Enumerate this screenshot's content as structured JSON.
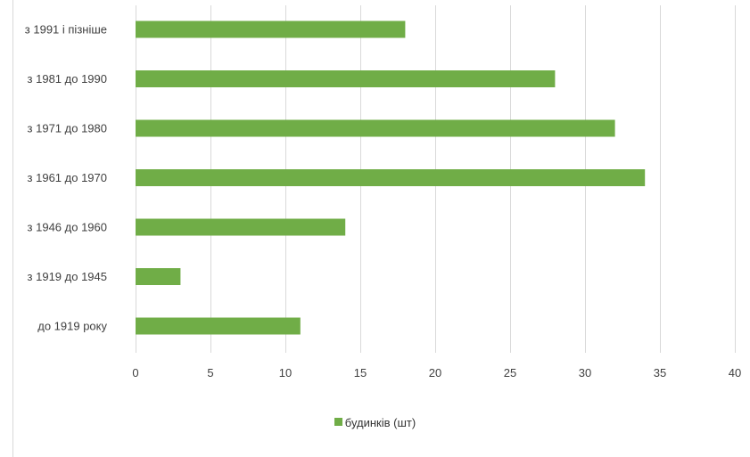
{
  "chart_data": {
    "type": "bar",
    "orientation": "horizontal",
    "categories": [
      "з 1991 і пізніше",
      "з 1981 до 1990",
      "з 1971 до 1980",
      "з 1961 до 1970",
      "з 1946 до 1960",
      "з 1919 до 1945",
      "до 1919 року"
    ],
    "series": [
      {
        "name": "будинків (шт)",
        "values": [
          18,
          28,
          32,
          34,
          14,
          3,
          11
        ],
        "color": "#70ad47"
      }
    ],
    "xlim": [
      0,
      40
    ],
    "xticks": [
      0,
      5,
      10,
      15,
      20,
      25,
      30,
      35,
      40
    ],
    "grid": "vertical",
    "legend": "bottom"
  }
}
